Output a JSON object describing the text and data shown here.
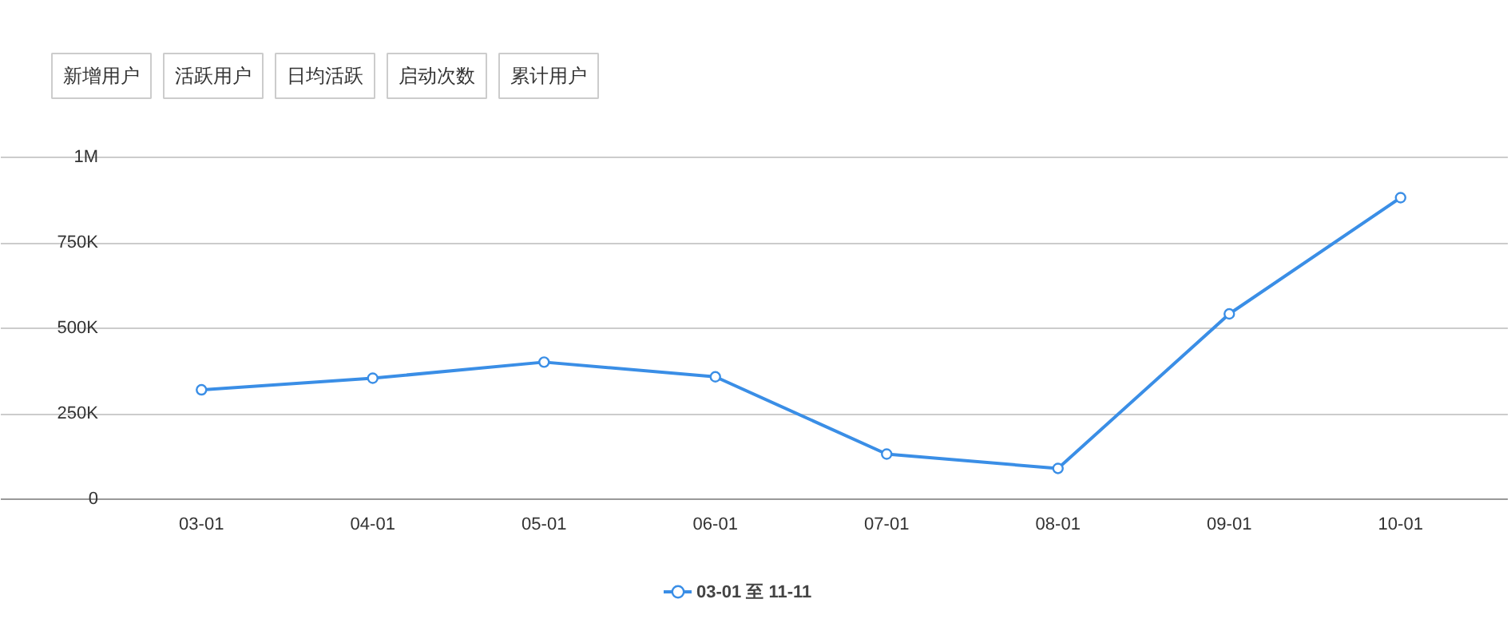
{
  "chart_data": {
    "type": "line",
    "annotations": [
      "新增用户",
      "活跃用户",
      "日均活跃",
      "启动次数",
      "累计用户"
    ],
    "categories": [
      "03-01",
      "04-01",
      "05-01",
      "06-01",
      "07-01",
      "08-01",
      "09-01",
      "10-01"
    ],
    "series": [
      {
        "name": "03-01 至 11-11",
        "color": "#3a8ee6",
        "values": [
          320000,
          354000,
          401000,
          358000,
          132000,
          90000,
          542000,
          882000
        ]
      }
    ],
    "ylim": [
      0,
      1000000
    ],
    "yticks": [
      0,
      {
        "value": 250000,
        "label": "250K"
      },
      {
        "value": 500000,
        "label": "500K"
      },
      {
        "value": 750000,
        "label": "750K"
      },
      {
        "value": 1000000,
        "label": "1M"
      }
    ],
    "grid": "y",
    "legend": "bottom",
    "marker": "circle",
    "line_style": "solid"
  }
}
